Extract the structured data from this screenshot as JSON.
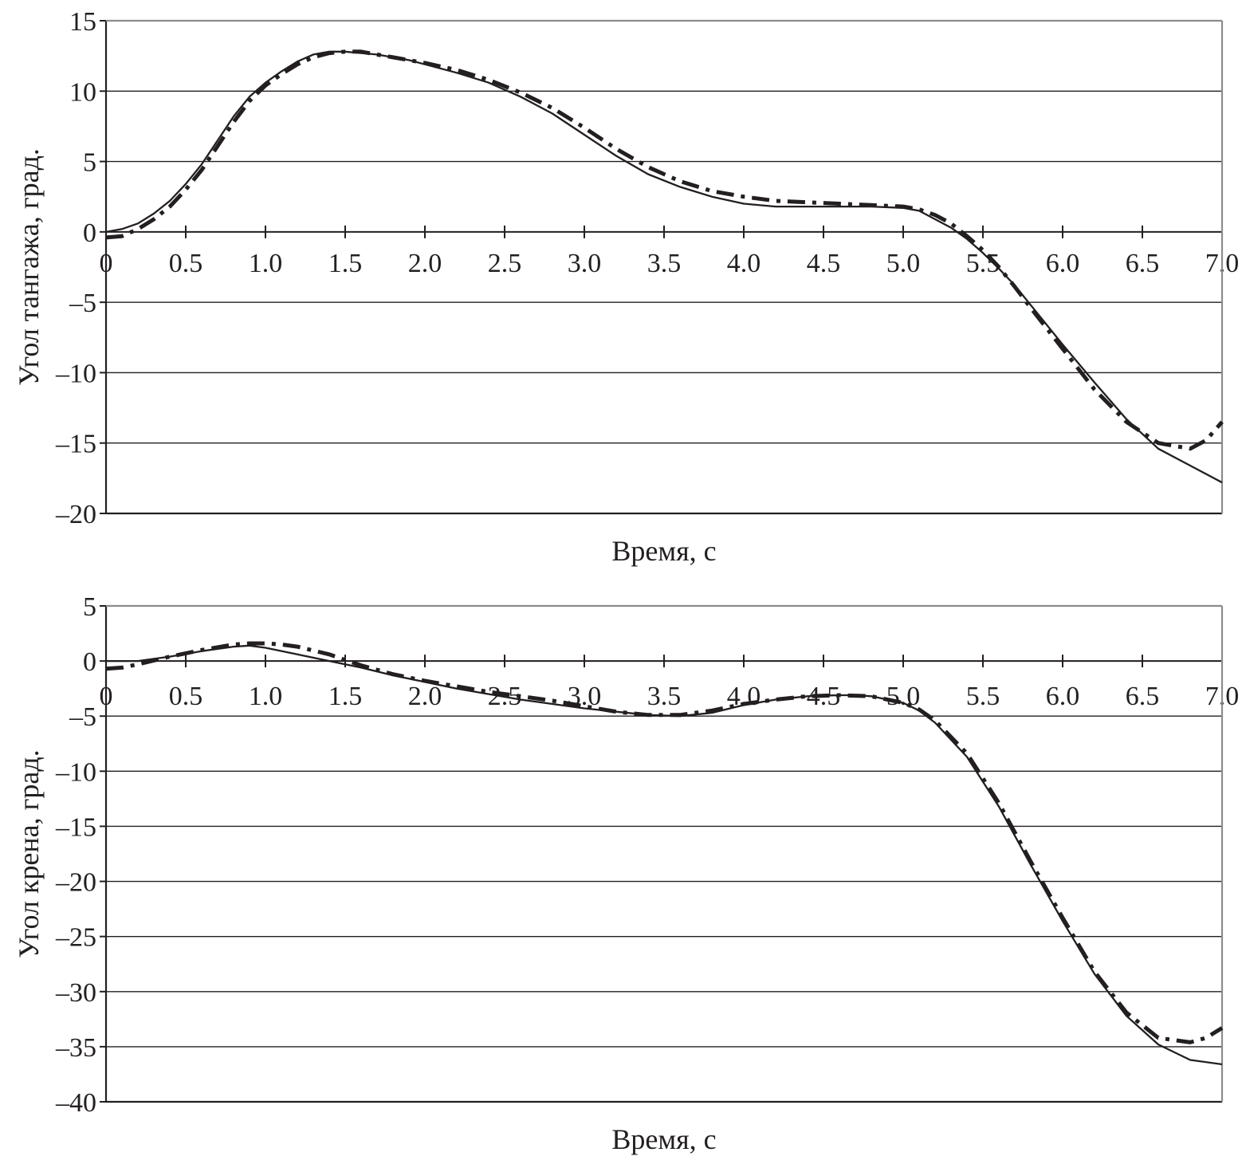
{
  "chart_data": [
    {
      "type": "line",
      "ylabel": "Угол тангажа, град.",
      "xlabel": "Время, с",
      "xlim": [
        0,
        7.0
      ],
      "ylim": [
        -20,
        15
      ],
      "x_ticks": [
        "0",
        "0.5",
        "1.0",
        "1.5",
        "2.0",
        "2.5",
        "3.0",
        "3.5",
        "4.0",
        "4.5",
        "5.0",
        "5.5",
        "6.0",
        "6.5",
        "7.0"
      ],
      "y_ticks": [
        "15",
        "10",
        "5",
        "0",
        "–5",
        "–10",
        "–15",
        "–20"
      ],
      "grid": "horizontal",
      "series": [
        {
          "style": "solid",
          "x": [
            0,
            0.1,
            0.2,
            0.3,
            0.4,
            0.5,
            0.6,
            0.7,
            0.8,
            0.9,
            1.0,
            1.1,
            1.2,
            1.3,
            1.4,
            1.5,
            1.6,
            1.7,
            1.8,
            1.9,
            2.0,
            2.2,
            2.4,
            2.6,
            2.8,
            3.0,
            3.2,
            3.4,
            3.6,
            3.8,
            4.0,
            4.2,
            4.4,
            4.6,
            4.8,
            5.0,
            5.1,
            5.2,
            5.3,
            5.4,
            5.5,
            5.6,
            5.7,
            5.8,
            6.0,
            6.2,
            6.4,
            6.6,
            6.8,
            7.0
          ],
          "y": [
            0.0,
            0.2,
            0.6,
            1.3,
            2.2,
            3.4,
            4.8,
            6.5,
            8.2,
            9.6,
            10.6,
            11.4,
            12.1,
            12.6,
            12.8,
            12.8,
            12.7,
            12.6,
            12.4,
            12.2,
            11.9,
            11.3,
            10.6,
            9.6,
            8.4,
            6.9,
            5.4,
            4.1,
            3.2,
            2.5,
            2.0,
            1.8,
            1.8,
            1.8,
            1.8,
            1.7,
            1.5,
            0.9,
            0.3,
            -0.5,
            -1.5,
            -2.6,
            -3.8,
            -5.2,
            -8.0,
            -10.7,
            -13.3,
            -15.4,
            -16.6,
            -17.8
          ]
        },
        {
          "style": "dash-dot",
          "x": [
            0,
            0.1,
            0.2,
            0.3,
            0.4,
            0.5,
            0.6,
            0.7,
            0.8,
            0.9,
            1.0,
            1.1,
            1.2,
            1.3,
            1.4,
            1.5,
            1.6,
            1.7,
            1.8,
            1.9,
            2.0,
            2.2,
            2.4,
            2.6,
            2.8,
            3.0,
            3.2,
            3.4,
            3.6,
            3.8,
            4.0,
            4.2,
            4.4,
            4.6,
            4.8,
            5.0,
            5.1,
            5.2,
            5.3,
            5.4,
            5.5,
            5.6,
            5.7,
            5.8,
            6.0,
            6.2,
            6.4,
            6.6,
            6.8,
            6.9,
            7.0
          ],
          "y": [
            -0.4,
            -0.3,
            0.2,
            0.9,
            1.8,
            3.0,
            4.4,
            6.1,
            7.8,
            9.3,
            10.4,
            11.2,
            11.9,
            12.4,
            12.7,
            12.8,
            12.8,
            12.6,
            12.4,
            12.2,
            12.0,
            11.5,
            10.8,
            9.9,
            8.8,
            7.4,
            5.9,
            4.6,
            3.6,
            2.9,
            2.5,
            2.2,
            2.1,
            2.0,
            1.9,
            1.8,
            1.6,
            1.2,
            0.6,
            -0.3,
            -1.3,
            -2.5,
            -3.9,
            -5.4,
            -8.3,
            -11.2,
            -13.5,
            -15.0,
            -15.4,
            -14.8,
            -13.5
          ]
        }
      ]
    },
    {
      "type": "line",
      "ylabel": "Угол крена, град.",
      "xlabel": "Время, с",
      "xlim": [
        0,
        7.0
      ],
      "ylim": [
        -40,
        5
      ],
      "x_ticks": [
        "0",
        "0.5",
        "1.0",
        "1.5",
        "2.0",
        "2.5",
        "3.0",
        "3.5",
        "4.0",
        "4.5",
        "5.0",
        "5.5",
        "6.0",
        "6.5",
        "7.0"
      ],
      "y_ticks": [
        "5",
        "0",
        "–5",
        "–10",
        "–15",
        "–20",
        "–25",
        "–30",
        "–35",
        "–40"
      ],
      "grid": "horizontal",
      "series": [
        {
          "style": "solid",
          "x": [
            0,
            0.2,
            0.4,
            0.6,
            0.8,
            0.9,
            1.0,
            1.2,
            1.4,
            1.6,
            1.8,
            2.0,
            2.2,
            2.4,
            2.6,
            2.8,
            3.0,
            3.2,
            3.4,
            3.6,
            3.8,
            4.0,
            4.2,
            4.4,
            4.6,
            4.7,
            4.8,
            5.0,
            5.1,
            5.2,
            5.4,
            5.6,
            5.8,
            6.0,
            6.2,
            6.4,
            6.6,
            6.8,
            7.0
          ],
          "y": [
            0.0,
            0.0,
            0.4,
            0.9,
            1.3,
            1.4,
            1.2,
            0.6,
            0.0,
            -0.6,
            -1.3,
            -1.9,
            -2.5,
            -3.0,
            -3.5,
            -3.9,
            -4.3,
            -4.6,
            -4.9,
            -5.0,
            -4.7,
            -4.0,
            -3.5,
            -3.2,
            -3.1,
            -3.1,
            -3.2,
            -3.8,
            -4.5,
            -5.6,
            -8.7,
            -13.2,
            -18.5,
            -23.6,
            -28.4,
            -32.2,
            -34.8,
            -36.2,
            -36.6
          ]
        },
        {
          "style": "dash-dot",
          "x": [
            0,
            0.1,
            0.2,
            0.4,
            0.6,
            0.8,
            0.9,
            1.0,
            1.1,
            1.2,
            1.4,
            1.6,
            1.8,
            2.0,
            2.2,
            2.4,
            2.6,
            2.8,
            3.0,
            3.2,
            3.4,
            3.6,
            3.8,
            4.0,
            4.2,
            4.4,
            4.6,
            4.8,
            5.0,
            5.1,
            5.2,
            5.4,
            5.6,
            5.8,
            6.0,
            6.2,
            6.4,
            6.6,
            6.8,
            6.9,
            7.0
          ],
          "y": [
            -0.7,
            -0.6,
            -0.3,
            0.4,
            1.0,
            1.5,
            1.6,
            1.6,
            1.5,
            1.3,
            0.6,
            -0.4,
            -1.2,
            -1.8,
            -2.3,
            -2.8,
            -3.2,
            -3.6,
            -4.1,
            -4.6,
            -4.9,
            -4.9,
            -4.5,
            -3.9,
            -3.5,
            -3.2,
            -3.1,
            -3.2,
            -3.8,
            -4.4,
            -5.4,
            -8.4,
            -12.9,
            -18.2,
            -23.3,
            -28.2,
            -31.9,
            -34.2,
            -34.6,
            -34.2,
            -33.3
          ]
        }
      ]
    }
  ]
}
